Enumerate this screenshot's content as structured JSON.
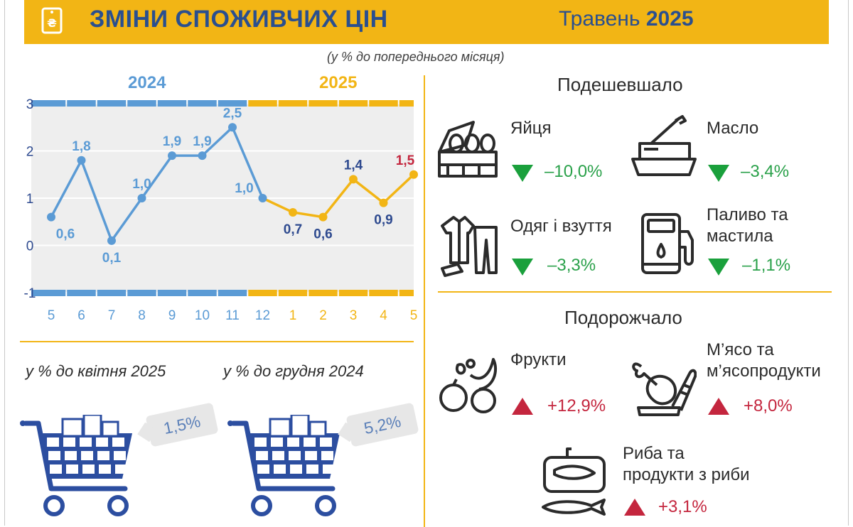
{
  "header": {
    "title": "ЗМІНИ СПОЖИВЧИХ ЦІН",
    "period_month": "Травень",
    "period_year": "2025",
    "logo_symbol": "₴"
  },
  "subtitle": "(у % до попереднього місяця)",
  "colors": {
    "yellow": "#f2b515",
    "blue_2024": "#5b9bd5",
    "navy_2025": "#2e4a8f",
    "green": "#1aa03c",
    "red": "#c4263e",
    "cart_blue": "#2c4ea0"
  },
  "chart_data": {
    "type": "line",
    "year_labels": [
      "2024",
      "2025"
    ],
    "categories": [
      "5",
      "6",
      "7",
      "8",
      "9",
      "10",
      "11",
      "12",
      "1",
      "2",
      "3",
      "4",
      "5"
    ],
    "series": [
      {
        "values": [
          0.6,
          1.8,
          0.1,
          1.0,
          1.9,
          1.9,
          2.5,
          1.0,
          null,
          null,
          null,
          null,
          null
        ]
      },
      {
        "values": [
          null,
          null,
          null,
          null,
          null,
          null,
          null,
          1.0,
          0.7,
          0.6,
          1.4,
          0.9,
          1.5
        ]
      }
    ],
    "data_labels": [
      "0,6",
      "1,8",
      "0,1",
      "1,0",
      "1,9",
      "1,9",
      "2,5",
      "1,0",
      "0,7",
      "0,6",
      "1,4",
      "0,9",
      "1,5"
    ],
    "y_ticks": [
      "3",
      "2",
      "1",
      "0",
      "-1"
    ],
    "ylim": [
      -1,
      3
    ],
    "highlight_last": true
  },
  "cheaper": {
    "title": "Подешевшало",
    "items": [
      {
        "label": "Яйця",
        "value": "–10,0%",
        "icon": "eggs-icon"
      },
      {
        "label": "Масло",
        "value": "–3,4%",
        "icon": "butter-icon"
      },
      {
        "label_1": "Одяг і взуття",
        "value": "–3,3%",
        "icon": "clothing-icon"
      },
      {
        "label_1": "Паливо та",
        "label_2": "мастила",
        "value": "–1,1%",
        "icon": "fuel-icon"
      }
    ]
  },
  "pricier": {
    "title": "Подорожчало",
    "items": [
      {
        "label": "Фрукти",
        "value": "+12,9%",
        "icon": "fruit-icon"
      },
      {
        "label_1": "М’ясо та",
        "label_2": "м’ясопродукти",
        "value": "+8,0%",
        "icon": "meat-icon"
      },
      {
        "label_1": "Риба та",
        "label_2": "продукти з риби",
        "value": "+3,1%",
        "icon": "fish-icon"
      }
    ]
  },
  "carts": [
    {
      "caption": "у % до квітня 2025",
      "value": "1,5%"
    },
    {
      "caption": "у % до грудня 2024",
      "value": "5,2%"
    }
  ]
}
